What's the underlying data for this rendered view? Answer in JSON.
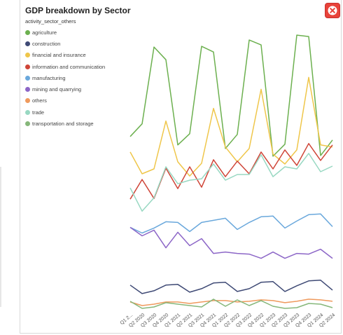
{
  "panel": {
    "title": "GDP breakdown by Sector",
    "close_icon": "close-icon"
  },
  "colors": {
    "agriculture": "#6cb04f",
    "construction": "#3f4a75",
    "financial and insurance": "#efc64a",
    "information and communication": "#cf4538",
    "manufacturing": "#6aa8dc",
    "mining and quarrying": "#8c66c7",
    "others": "#ef9a5d",
    "trade": "#98d8c2",
    "transportation and storage": "#86b77a"
  },
  "chart_data": {
    "type": "line",
    "legend_title": "activity_sector_others",
    "legend_position": "top-left",
    "grid": false,
    "x": [
      "Q1 2020",
      "Q2 2020",
      "Q3 2020",
      "Q4 2020",
      "Q1 2021",
      "Q2 2021",
      "Q3 2021",
      "Q4 2021",
      "Q1 2022",
      "Q2 2022",
      "Q3 2022",
      "Q4 2022",
      "Q1 2023",
      "Q2 2023",
      "Q3 2023",
      "Q4 2023",
      "Q1 2024",
      "Q2 2024"
    ],
    "x_tick_labels": [
      "Q1 2...",
      "Q2 2020",
      "Q3 2020",
      "Q4 2020",
      "Q1 2021",
      "Q2 2021",
      "Q3 2021",
      "Q4 2021",
      "Q1 2022",
      "Q2 2022",
      "Q3 2022",
      "Q4 2022",
      "Q1 2023",
      "Q2 2023",
      "Q3 2023",
      "Q4 2023",
      "Q1 2024",
      "Q2 2024"
    ],
    "ylim": [
      0,
      400
    ],
    "series": [
      {
        "name": "agriculture",
        "values": [
          246,
          264,
          373,
          355,
          234,
          250,
          374,
          366,
          229,
          249,
          383,
          376,
          218,
          235,
          390,
          388,
          219,
          241
        ]
      },
      {
        "name": "construction",
        "values": [
          35,
          23,
          27,
          35,
          36,
          25,
          30,
          38,
          39,
          26,
          30,
          39,
          40,
          26,
          34,
          41,
          42,
          28
        ]
      },
      {
        "name": "financial and insurance",
        "values": [
          224,
          193,
          200,
          268,
          210,
          190,
          208,
          286,
          231,
          210,
          229,
          313,
          221,
          207,
          227,
          330,
          234,
          231
        ]
      },
      {
        "name": "information and communication",
        "values": [
          157,
          185,
          158,
          201,
          172,
          203,
          174,
          213,
          189,
          211,
          193,
          224,
          200,
          227,
          205,
          236,
          212,
          234
        ]
      },
      {
        "name": "manufacturing",
        "values": [
          117,
          109,
          116,
          125,
          124,
          111,
          124,
          127,
          130,
          114,
          124,
          132,
          133,
          116,
          126,
          135,
          136,
          118
        ]
      },
      {
        "name": "mining and quarrying",
        "values": [
          117,
          105,
          113,
          88,
          110,
          91,
          101,
          80,
          82,
          80,
          79,
          73,
          82,
          73,
          80,
          79,
          86,
          73
        ]
      },
      {
        "name": "others",
        "values": [
          11,
          6,
          8,
          11,
          11,
          9,
          11,
          13,
          13,
          11,
          12,
          14,
          13,
          10,
          12,
          15,
          14,
          12
        ]
      },
      {
        "name": "trade",
        "values": [
          173,
          140,
          159,
          203,
          179,
          184,
          186,
          207,
          184,
          192,
          192,
          220,
          189,
          203,
          200,
          222,
          196,
          204
        ]
      },
      {
        "name": "transportation and storage",
        "values": [
          12,
          2,
          4,
          10,
          8,
          6,
          4,
          15,
          5,
          14,
          6,
          13,
          5,
          2,
          3,
          9,
          8,
          3
        ]
      }
    ]
  }
}
